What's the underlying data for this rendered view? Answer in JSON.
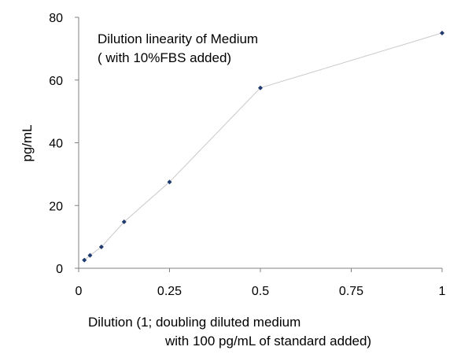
{
  "chart_data": {
    "type": "scatter",
    "title": "",
    "annotation_lines": [
      "Dilution linearity of Medium",
      "( with 10%FBS added)"
    ],
    "xlabel_lines": [
      "Dilution (1; doubling diluted medium",
      "with 100 pg/mL of standard added)"
    ],
    "ylabel": "pg/mL",
    "xlim": [
      0,
      1
    ],
    "ylim": [
      0,
      80
    ],
    "xticks": [
      0,
      0.25,
      0.5,
      0.75,
      1
    ],
    "xtick_labels": [
      "0",
      "0.25",
      "0.5",
      "0.75",
      "1"
    ],
    "yticks": [
      0,
      20,
      40,
      60,
      80
    ],
    "ytick_labels": [
      "0",
      "20",
      "40",
      "60",
      "80"
    ],
    "grid": false,
    "legend": "none",
    "series": [
      {
        "x": [
          0.015625,
          0.03125,
          0.0625,
          0.125,
          0.25,
          0.5,
          1
        ],
        "y": [
          2.6,
          4.1,
          6.8,
          14.8,
          27.5,
          57.5,
          75
        ],
        "marker_color": "#1f3a6e",
        "line_color": "#c8c8c8"
      }
    ]
  }
}
